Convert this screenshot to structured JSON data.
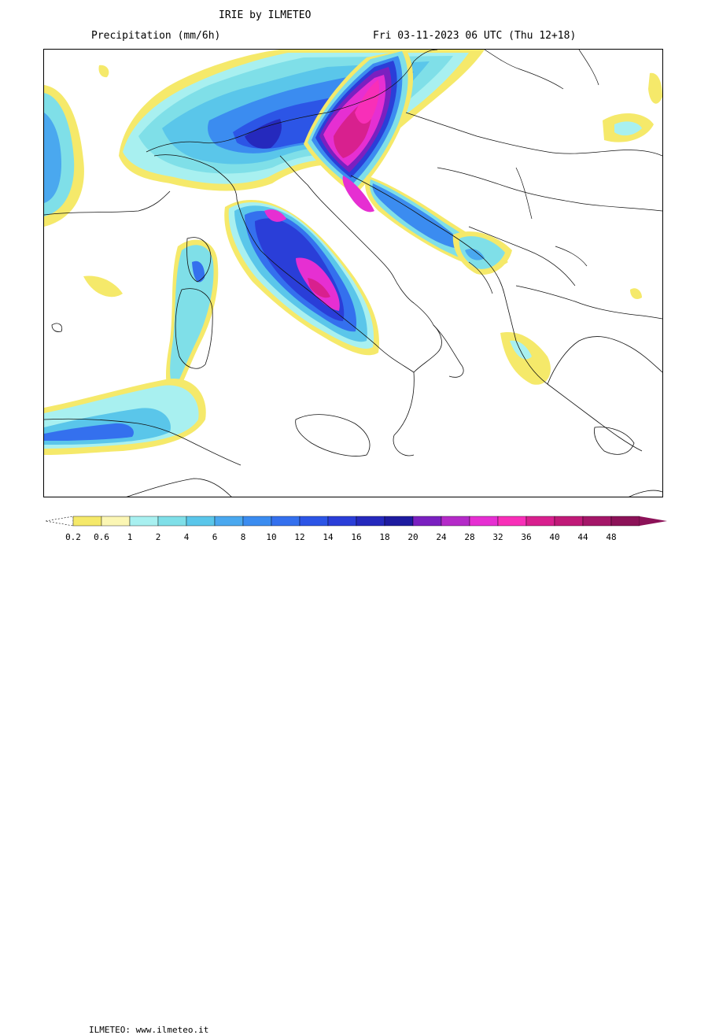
{
  "header": {
    "title": "IRIE by ILMETEO",
    "subtitle": "Precipitation (mm/6h)",
    "datetime": "Fri 03-11-2023 06 UTC (Thu 12+18)"
  },
  "legend": {
    "watermark": "ILMETEO: www.ilmeteo.it",
    "ticks": [
      "0.2",
      "0.6",
      "1",
      "2",
      "4",
      "6",
      "8",
      "10",
      "12",
      "14",
      "16",
      "18",
      "20",
      "24",
      "28",
      "32",
      "36",
      "40",
      "44",
      "48"
    ],
    "colors": [
      "#f5e96a",
      "#fbf6b4",
      "#a8f0f0",
      "#7fdfe8",
      "#5ac6ea",
      "#4aa8ef",
      "#3b8cf0",
      "#3470ee",
      "#2c55e6",
      "#2a3ed8",
      "#2529bd",
      "#1e1ba0",
      "#7a20c0",
      "#b42ac8",
      "#e62fd2",
      "#f82fb8",
      "#d8208e",
      "#c01a78",
      "#a41668",
      "#8c1258"
    ]
  },
  "map": {
    "region": "Italy and central Mediterranean",
    "max_intensity_areas": [
      "northern Adriatic / Slovenia-Croatia",
      "Tuscany-Lazio coast",
      "Tyrrhenian coast near Campania"
    ]
  }
}
